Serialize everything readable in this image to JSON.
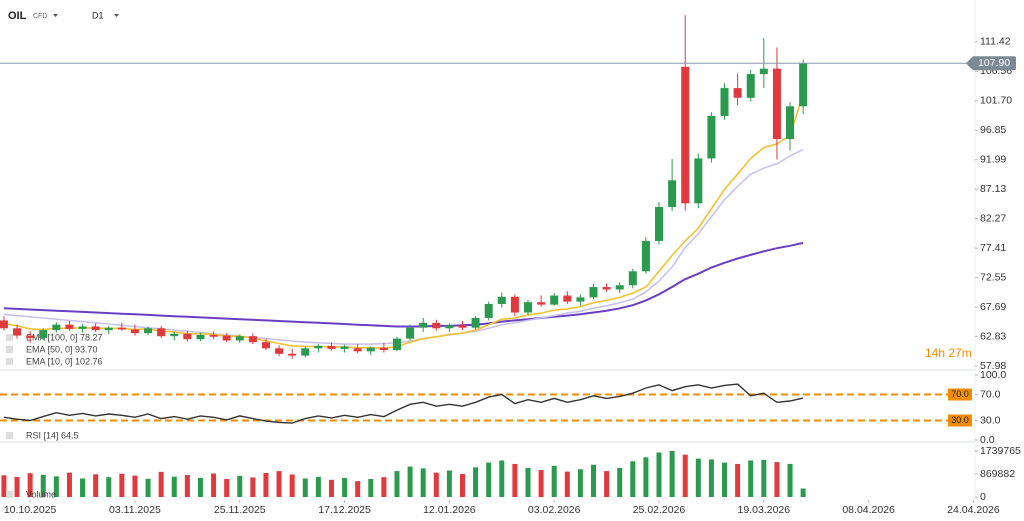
{
  "chart_data": [
    {
      "type": "candlestick",
      "symbol": "OIL",
      "instrument": "CFD",
      "timeframe": "D1",
      "xlim": [
        -0.3,
        74.5
      ],
      "xticks": [
        {
          "value": 2,
          "label": "10.10.2025"
        },
        {
          "value": 10,
          "label": "03.11.2025"
        },
        {
          "value": 18,
          "label": "25.11.2025"
        },
        {
          "value": 26,
          "label": "17.12.2025"
        },
        {
          "value": 34,
          "label": "12.01.2026"
        },
        {
          "value": 42,
          "label": "03.02.2026"
        },
        {
          "value": 50,
          "label": "25.02.2026"
        },
        {
          "value": 58,
          "label": "19.03.2026"
        },
        {
          "value": 66,
          "label": "08.04.2026"
        },
        {
          "value": 74,
          "label": "24.04.2026"
        }
      ],
      "ylim": [
        56.5,
        117
      ],
      "yticks": [
        {
          "value": 111.42,
          "label": "111.42"
        },
        {
          "value": 106.56,
          "label": "106.56"
        },
        {
          "value": 101.7,
          "label": "101.70"
        },
        {
          "value": 96.85,
          "label": "96.85"
        },
        {
          "value": 91.99,
          "label": "91.99"
        },
        {
          "value": 87.13,
          "label": "87.13"
        },
        {
          "value": 82.27,
          "label": "82.27"
        },
        {
          "value": 77.41,
          "label": "77.41"
        },
        {
          "value": 72.55,
          "label": "72.55"
        },
        {
          "value": 67.69,
          "label": "67.69"
        },
        {
          "value": 62.83,
          "label": "62.83"
        },
        {
          "value": 57.98,
          "label": "57.98"
        }
      ],
      "open": [
        65.5,
        64.2,
        63.0,
        62.6,
        63.9,
        64.8,
        64.1,
        64.5,
        63.9,
        64.3,
        64.0,
        63.4,
        64.2,
        62.9,
        63.3,
        62.4,
        63.1,
        63.0,
        62.2,
        62.9,
        61.9,
        60.9,
        60.0,
        59.7,
        60.9,
        61.3,
        60.8,
        60.9,
        60.4,
        61.0,
        60.6,
        62.5,
        64.3,
        65.1,
        64.2,
        64.7,
        64.3,
        65.9,
        68.2,
        69.4,
        66.8,
        68.5,
        68.1,
        69.6,
        68.6,
        69.3,
        71.0,
        70.6,
        71.3,
        73.6,
        78.6,
        84.2,
        107.3,
        84.8,
        92.2,
        99.2,
        103.8,
        102.2,
        106.1,
        107.0,
        95.4,
        100.8
      ],
      "high": [
        66.2,
        64.8,
        63.8,
        64.2,
        65.2,
        65.4,
        64.9,
        65.0,
        64.6,
        65.1,
        64.8,
        64.5,
        64.6,
        63.6,
        63.8,
        63.5,
        63.7,
        63.4,
        63.2,
        63.4,
        62.5,
        61.4,
        60.8,
        61.2,
        61.6,
        61.9,
        61.5,
        61.6,
        61.2,
        61.8,
        62.8,
        64.8,
        65.9,
        65.6,
        65.0,
        65.4,
        66.2,
        68.6,
        70.1,
        69.8,
        68.9,
        69.6,
        70.0,
        70.3,
        69.8,
        71.5,
        71.6,
        71.8,
        74.0,
        79.2,
        85.0,
        92.1,
        115.8,
        93.0,
        99.8,
        104.6,
        106.2,
        106.8,
        112.0,
        110.5,
        101.5,
        108.5
      ],
      "low": [
        63.8,
        62.5,
        61.8,
        62.2,
        63.5,
        63.8,
        63.5,
        63.6,
        63.2,
        63.8,
        63.0,
        63.1,
        62.6,
        62.2,
        62.0,
        62.1,
        62.4,
        61.9,
        61.8,
        61.6,
        60.6,
        59.6,
        59.2,
        59.4,
        60.2,
        60.5,
        60.2,
        60.1,
        59.8,
        60.2,
        60.4,
        62.2,
        63.6,
        63.8,
        63.6,
        63.9,
        64.0,
        65.5,
        67.6,
        66.2,
        66.4,
        67.8,
        67.9,
        68.2,
        67.9,
        69.0,
        70.2,
        70.0,
        70.8,
        73.2,
        78.0,
        83.5,
        83.6,
        84.0,
        91.5,
        98.6,
        101.0,
        101.6,
        103.8,
        92.0,
        93.5,
        99.5
      ],
      "close": [
        64.2,
        63.0,
        62.6,
        63.9,
        64.8,
        64.1,
        64.5,
        63.9,
        64.3,
        64.0,
        63.4,
        64.2,
        62.9,
        63.3,
        62.4,
        63.1,
        62.8,
        62.2,
        62.9,
        61.9,
        60.9,
        60.0,
        59.7,
        60.9,
        61.3,
        60.8,
        61.2,
        60.4,
        61.0,
        60.6,
        62.5,
        64.3,
        65.1,
        64.2,
        64.7,
        64.3,
        65.9,
        68.2,
        69.4,
        66.8,
        68.5,
        68.1,
        69.6,
        68.6,
        69.3,
        71.0,
        70.6,
        71.3,
        73.6,
        78.6,
        84.2,
        88.6,
        84.8,
        92.2,
        99.2,
        103.8,
        102.2,
        106.1,
        107.0,
        95.4,
        100.8,
        107.9
      ],
      "up_color": "#2b9a4f",
      "down_color": "#e0393e",
      "series": [
        {
          "name": "EMA [100, 0] 78.27",
          "color": "#6a3fc4",
          "values": [
            67.5,
            67.4,
            67.3,
            67.2,
            67.1,
            67.0,
            66.9,
            66.8,
            66.7,
            66.6,
            66.5,
            66.4,
            66.3,
            66.2,
            66.1,
            66.0,
            65.9,
            65.8,
            65.7,
            65.6,
            65.5,
            65.4,
            65.3,
            65.2,
            65.1,
            65.0,
            64.9,
            64.8,
            64.7,
            64.6,
            64.5,
            64.5,
            64.5,
            64.6,
            64.6,
            64.7,
            64.8,
            65.0,
            65.3,
            65.5,
            65.7,
            65.9,
            66.1,
            66.3,
            66.5,
            66.8,
            67.1,
            67.5,
            68.0,
            68.8,
            69.8,
            71.0,
            72.3,
            73.2,
            74.2,
            75.0,
            75.7,
            76.3,
            76.9,
            77.4,
            77.8,
            78.27
          ]
        },
        {
          "name": "EMA [50, 0] 93.70",
          "color": "#c9c3ec",
          "values": [
            66.5,
            66.3,
            66.1,
            65.9,
            65.7,
            65.5,
            65.3,
            65.1,
            64.9,
            64.7,
            64.5,
            64.3,
            64.1,
            63.9,
            63.7,
            63.5,
            63.3,
            63.1,
            62.9,
            62.7,
            62.5,
            62.3,
            62.1,
            61.9,
            61.8,
            61.7,
            61.6,
            61.6,
            61.6,
            61.7,
            61.8,
            62.1,
            62.5,
            62.8,
            63.1,
            63.4,
            63.7,
            64.2,
            64.8,
            65.1,
            65.5,
            65.9,
            66.3,
            66.7,
            67.0,
            67.5,
            67.9,
            68.4,
            69.0,
            70.2,
            72.0,
            74.3,
            77.5,
            79.8,
            82.6,
            85.4,
            87.6,
            89.6,
            90.6,
            91.3,
            92.6,
            93.7
          ]
        },
        {
          "name": "EMA [10, 0] 102.76",
          "color": "#f2c230",
          "values": [
            65.0,
            64.6,
            64.1,
            64.0,
            64.2,
            64.2,
            64.3,
            64.2,
            64.2,
            64.2,
            64.0,
            64.1,
            63.7,
            63.6,
            63.3,
            63.3,
            63.2,
            62.9,
            62.9,
            62.6,
            62.1,
            61.7,
            61.3,
            61.2,
            61.2,
            61.1,
            61.1,
            61.0,
            61.0,
            60.9,
            61.2,
            61.9,
            62.5,
            62.8,
            63.2,
            63.4,
            63.9,
            64.8,
            65.7,
            65.9,
            66.4,
            66.7,
            67.2,
            67.4,
            67.8,
            68.4,
            68.8,
            69.3,
            70.0,
            71.0,
            73.6,
            76.2,
            78.6,
            80.7,
            83.9,
            87.1,
            89.6,
            92.2,
            94.0,
            94.6,
            96.0,
            102.76
          ]
        }
      ],
      "last_price": {
        "value": 107.9,
        "label": "107.90"
      },
      "countdown": "14h 27m"
    },
    {
      "type": "line",
      "ylim": [
        0,
        100
      ],
      "yticks": [
        {
          "value": 100,
          "label": "100.0"
        },
        {
          "value": 70,
          "label": "70.0"
        },
        {
          "value": 30,
          "label": "30.0"
        },
        {
          "value": 0,
          "label": "0.0"
        }
      ],
      "levels": [
        {
          "value": 70,
          "label": "70.0"
        },
        {
          "value": 30,
          "label": "30.0"
        }
      ],
      "level_color": "#f08c00",
      "series": [
        {
          "name": "RSI [14] 64.5",
          "color": "#333333",
          "values": [
            35,
            32,
            30,
            36,
            42,
            38,
            41,
            37,
            40,
            38,
            35,
            40,
            33,
            36,
            32,
            37,
            35,
            31,
            37,
            33,
            29,
            27,
            26,
            33,
            37,
            34,
            38,
            35,
            39,
            36,
            46,
            55,
            58,
            52,
            55,
            52,
            58,
            66,
            70,
            56,
            62,
            58,
            64,
            58,
            62,
            68,
            64,
            67,
            72,
            80,
            85,
            76,
            82,
            85,
            80,
            84,
            86,
            68,
            72,
            58,
            60,
            64.5
          ]
        }
      ]
    },
    {
      "type": "bar",
      "ylim": [
        0,
        1966000
      ],
      "yticks": [
        0,
        869882,
        1739765
      ],
      "series": [
        {
          "name": "Volume",
          "values": [
            820000,
            760000,
            900000,
            840000,
            780000,
            920000,
            700000,
            860000,
            750000,
            880000,
            810000,
            690000,
            950000,
            770000,
            830000,
            720000,
            890000,
            680000,
            800000,
            740000,
            910000,
            980000,
            850000,
            700000,
            760000,
            650000,
            720000,
            600000,
            680000,
            750000,
            980000,
            1150000,
            1080000,
            920000,
            1000000,
            870000,
            1120000,
            1300000,
            1380000,
            1250000,
            1100000,
            1020000,
            1180000,
            960000,
            1050000,
            1220000,
            980000,
            1100000,
            1350000,
            1500000,
            1680000,
            1740000,
            1600000,
            1450000,
            1420000,
            1300000,
            1250000,
            1380000,
            1400000,
            1320000,
            1250000,
            320000
          ]
        }
      ]
    }
  ]
}
